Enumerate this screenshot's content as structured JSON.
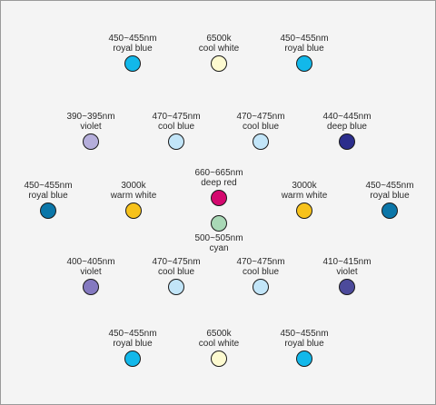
{
  "leds": [
    {
      "wave": "450~455nm",
      "name": "royal blue",
      "color": "#12b8ea"
    },
    {
      "wave": "6500k",
      "name": "cool white",
      "color": "#fdfad0"
    },
    {
      "wave": "450~455nm",
      "name": "royal blue",
      "color": "#12b8ea"
    },
    {
      "wave": "390~395nm",
      "name": "violet",
      "color": "#b5aedb"
    },
    {
      "wave": "470~475nm",
      "name": "cool blue",
      "color": "#c2e5f8"
    },
    {
      "wave": "470~475nm",
      "name": "cool blue",
      "color": "#c2e5f8"
    },
    {
      "wave": "440~445nm",
      "name": "deep blue",
      "color": "#2b2d8c"
    },
    {
      "wave": "450~455nm",
      "name": "royal blue",
      "color": "#0b76a8"
    },
    {
      "wave": "3000k",
      "name": "warm white",
      "color": "#f7c21b"
    },
    {
      "wave": "660~665nm",
      "name": "deep red",
      "color": "#d4086e"
    },
    {
      "wave": "3000k",
      "name": "warm white",
      "color": "#f7c21b"
    },
    {
      "wave": "450~455nm",
      "name": "royal blue",
      "color": "#0b76a8"
    },
    {
      "wave": "500~505nm",
      "name": "cyan",
      "color": "#a9d8b6"
    },
    {
      "wave": "400~405nm",
      "name": "violet",
      "color": "#8479c0"
    },
    {
      "wave": "470~475nm",
      "name": "cool blue",
      "color": "#c2e5f8"
    },
    {
      "wave": "470~475nm",
      "name": "cool blue",
      "color": "#c2e5f8"
    },
    {
      "wave": "410~415nm",
      "name": "violet",
      "color": "#4c4a9b"
    },
    {
      "wave": "450~455nm",
      "name": "royal blue",
      "color": "#12b8ea"
    },
    {
      "wave": "6500k",
      "name": "cool white",
      "color": "#fdfad0"
    },
    {
      "wave": "450~455nm",
      "name": "royal blue",
      "color": "#12b8ea"
    }
  ]
}
